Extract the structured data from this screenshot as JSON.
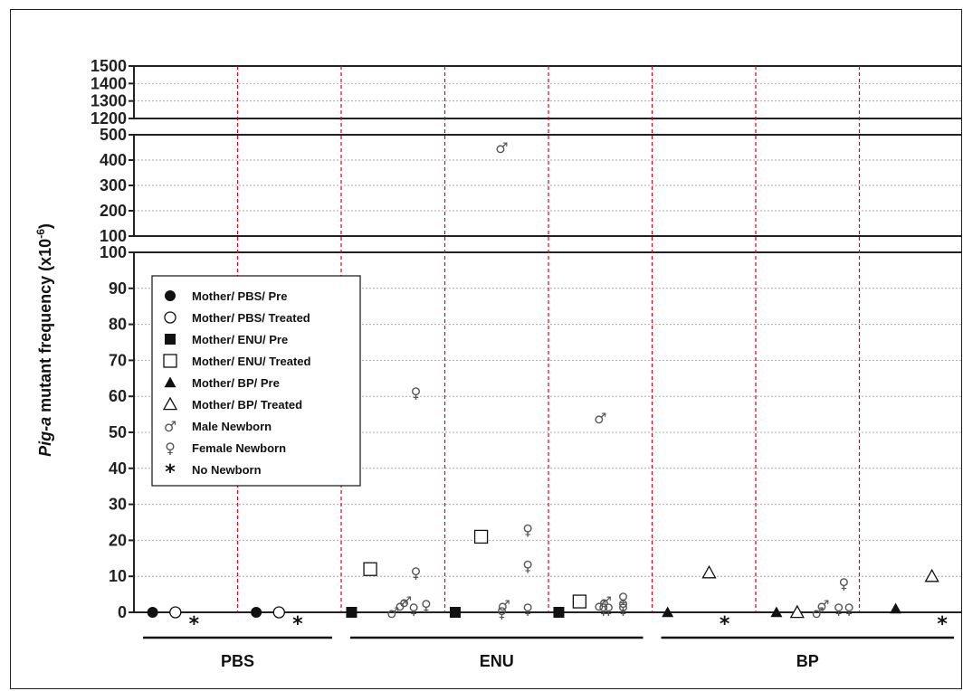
{
  "chart_data": {
    "type": "scatter",
    "ylabel": {
      "italic": "Pig-a",
      "rest": " mutant frequency (x10",
      "sup": "-6",
      "close": ")"
    },
    "axis_segments": [
      {
        "ylim": [
          0,
          100
        ],
        "ticks": [
          0,
          10,
          20,
          30,
          40,
          50,
          60,
          70,
          80,
          90,
          100
        ]
      },
      {
        "ylim": [
          100,
          500
        ],
        "ticks": [
          100,
          200,
          300,
          400,
          500
        ]
      },
      {
        "ylim": [
          1200,
          1500
        ],
        "ticks": [
          1200,
          1300,
          1400,
          1500
        ]
      }
    ],
    "groups": [
      {
        "label": "PBS",
        "first_slot": 0,
        "last_slot": 1
      },
      {
        "label": "ENU",
        "first_slot": 2,
        "last_slot": 4
      },
      {
        "label": "BP",
        "first_slot": 5,
        "last_slot": 7
      }
    ],
    "slot_count": 8,
    "legend": [
      {
        "marker": "filled-circle",
        "label": "Mother/ PBS/ Pre"
      },
      {
        "marker": "open-circle",
        "label": "Mother/ PBS/ Treated"
      },
      {
        "marker": "filled-square",
        "label": "Mother/ ENU/ Pre"
      },
      {
        "marker": "open-square",
        "label": "Mother/ ENU/ Treated"
      },
      {
        "marker": "filled-triangle",
        "label": "Mother/ BP/ Pre"
      },
      {
        "marker": "open-triangle",
        "label": "Mother/ BP/ Treated"
      },
      {
        "marker": "male",
        "label": "Male Newborn"
      },
      {
        "marker": "female",
        "label": "Female Newborn"
      },
      {
        "marker": "star",
        "label": "No Newborn"
      }
    ],
    "points": [
      {
        "slot": 0,
        "pos": 0.18,
        "marker": "filled-circle",
        "value": 0
      },
      {
        "slot": 0,
        "pos": 0.4,
        "marker": "open-circle",
        "value": 0
      },
      {
        "slot": 0,
        "pos": 0.58,
        "marker": "star",
        "value": 0
      },
      {
        "slot": 1,
        "pos": 0.18,
        "marker": "filled-circle",
        "value": 0
      },
      {
        "slot": 1,
        "pos": 0.4,
        "marker": "open-circle",
        "value": 0
      },
      {
        "slot": 1,
        "pos": 0.58,
        "marker": "star",
        "value": 0
      },
      {
        "slot": 2,
        "pos": 0.1,
        "marker": "filled-square",
        "value": 0
      },
      {
        "slot": 2,
        "pos": 0.28,
        "marker": "open-square",
        "value": 12
      },
      {
        "slot": 2,
        "pos": 0.5,
        "marker": "male",
        "value": 0
      },
      {
        "slot": 2,
        "pos": 0.58,
        "marker": "male",
        "value": 2
      },
      {
        "slot": 2,
        "pos": 0.62,
        "marker": "male",
        "value": 3
      },
      {
        "slot": 2,
        "pos": 0.72,
        "marker": "female",
        "value": 61
      },
      {
        "slot": 2,
        "pos": 0.72,
        "marker": "female",
        "value": 11
      },
      {
        "slot": 2,
        "pos": 0.7,
        "marker": "female",
        "value": 1
      },
      {
        "slot": 2,
        "pos": 0.82,
        "marker": "female",
        "value": 2
      },
      {
        "slot": 3,
        "pos": 0.1,
        "marker": "filled-square",
        "value": 0
      },
      {
        "slot": 3,
        "pos": 0.35,
        "marker": "open-square",
        "value": 21
      },
      {
        "slot": 3,
        "pos": 0.55,
        "marker": "male",
        "value": 450
      },
      {
        "slot": 3,
        "pos": 0.57,
        "marker": "male",
        "value": 2
      },
      {
        "slot": 3,
        "pos": 0.55,
        "marker": "female",
        "value": 0
      },
      {
        "slot": 3,
        "pos": 0.8,
        "marker": "female",
        "value": 23
      },
      {
        "slot": 3,
        "pos": 0.8,
        "marker": "female",
        "value": 13
      },
      {
        "slot": 3,
        "pos": 0.8,
        "marker": "female",
        "value": 1
      },
      {
        "slot": 4,
        "pos": 0.1,
        "marker": "filled-square",
        "value": 0
      },
      {
        "slot": 4,
        "pos": 0.3,
        "marker": "open-square",
        "value": 3
      },
      {
        "slot": 4,
        "pos": 0.5,
        "marker": "male",
        "value": 54
      },
      {
        "slot": 4,
        "pos": 0.5,
        "marker": "male",
        "value": 2
      },
      {
        "slot": 4,
        "pos": 0.55,
        "marker": "male",
        "value": 3
      },
      {
        "slot": 4,
        "pos": 0.53,
        "marker": "female",
        "value": 1
      },
      {
        "slot": 4,
        "pos": 0.58,
        "marker": "female",
        "value": 1
      },
      {
        "slot": 4,
        "pos": 0.72,
        "marker": "female",
        "value": 4
      },
      {
        "slot": 4,
        "pos": 0.72,
        "marker": "female",
        "value": 2
      },
      {
        "slot": 4,
        "pos": 0.72,
        "marker": "female",
        "value": 1
      },
      {
        "slot": 5,
        "pos": 0.15,
        "marker": "filled-triangle",
        "value": 0
      },
      {
        "slot": 5,
        "pos": 0.55,
        "marker": "open-triangle",
        "value": 11
      },
      {
        "slot": 5,
        "pos": 0.7,
        "marker": "star",
        "value": 0
      },
      {
        "slot": 6,
        "pos": 0.2,
        "marker": "filled-triangle",
        "value": 0
      },
      {
        "slot": 6,
        "pos": 0.4,
        "marker": "open-triangle",
        "value": 0
      },
      {
        "slot": 6,
        "pos": 0.6,
        "marker": "male",
        "value": 0
      },
      {
        "slot": 6,
        "pos": 0.65,
        "marker": "male",
        "value": 2
      },
      {
        "slot": 6,
        "pos": 0.8,
        "marker": "female",
        "value": 1
      },
      {
        "slot": 6,
        "pos": 0.85,
        "marker": "female",
        "value": 8
      },
      {
        "slot": 6,
        "pos": 0.9,
        "marker": "female",
        "value": 1
      },
      {
        "slot": 7,
        "pos": 0.35,
        "marker": "filled-triangle",
        "value": 1
      },
      {
        "slot": 7,
        "pos": 0.7,
        "marker": "open-triangle",
        "value": 10
      },
      {
        "slot": 7,
        "pos": 0.8,
        "marker": "star",
        "value": 0
      }
    ],
    "grid": true,
    "slot_dividers": "dashed red vertical lines",
    "legend_position": "upper-left",
    "colors": {
      "axis": "#222222",
      "grid": "#aaaaaa",
      "divider": "#e0001b",
      "marker": "#111111",
      "glyph": "#555555"
    }
  }
}
